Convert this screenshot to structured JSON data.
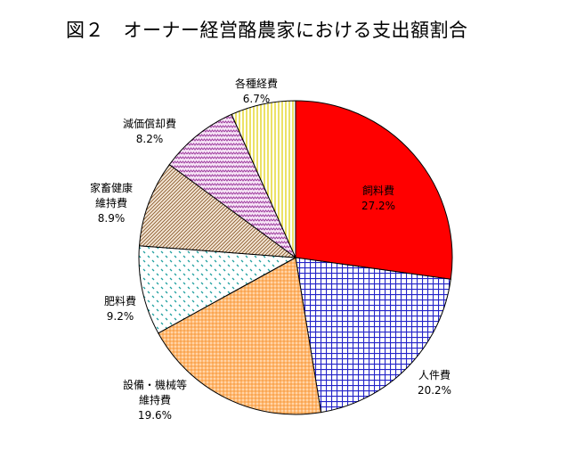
{
  "chart_data": {
    "type": "pie",
    "title": "図２　オーナー経営酪農家における支出額割合",
    "slices": [
      {
        "label_lines": [
          "飼料費"
        ],
        "value_text": "27.2%",
        "value": 27.2,
        "color": "#ff0000",
        "pattern": "solid"
      },
      {
        "label_lines": [
          "人件費"
        ],
        "value_text": "20.2%",
        "value": 20.2,
        "color": "#2323c8",
        "pattern": "grid"
      },
      {
        "label_lines": [
          "設備・機械等",
          "維持費"
        ],
        "value_text": "19.6%",
        "value": 19.6,
        "color": "#ffa64d",
        "pattern": "dots"
      },
      {
        "label_lines": [
          "肥料費"
        ],
        "value_text": "9.2%",
        "value": 9.2,
        "color": "#20a0a0",
        "pattern": "dashes"
      },
      {
        "label_lines": [
          "家畜健康",
          "維持費"
        ],
        "value_text": "8.9%",
        "value": 8.9,
        "color": "#8b5a2b",
        "pattern": "diagonal"
      },
      {
        "label_lines": [
          "減価償却費"
        ],
        "value_text": "8.2%",
        "value": 8.2,
        "color": "#a040a0",
        "pattern": "zigzag"
      },
      {
        "label_lines": [
          "各種経費"
        ],
        "value_text": "6.7%",
        "value": 6.7,
        "color": "#e0d000",
        "pattern": "vlines"
      }
    ]
  }
}
